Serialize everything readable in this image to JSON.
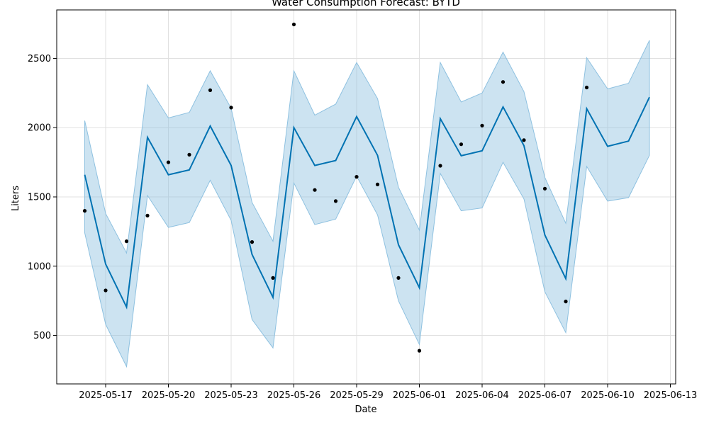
{
  "chart_data": {
    "type": "line",
    "title": "Water Consumption Forecast: BYTD",
    "xlabel": "Date",
    "ylabel": "Liters",
    "x_tick_labels": [
      "2025-05-17",
      "2025-05-20",
      "2025-05-23",
      "2025-05-26",
      "2025-05-29",
      "2025-06-01",
      "2025-06-04",
      "2025-06-07",
      "2025-06-10",
      "2025-06-13"
    ],
    "y_ticks": [
      500,
      1000,
      1500,
      2000,
      2500
    ],
    "x_range": [
      "2025-05-14",
      "2025-06-13"
    ],
    "ylim": [
      150,
      2850
    ],
    "grid": true,
    "colors": {
      "forecast_line": "#0072b2",
      "interval_fill": "#8ec1e0",
      "interval_edge": "#8ec1e0",
      "actual_points": "#000000",
      "grid": "#e0e0e0"
    },
    "dates": [
      "2025-05-16",
      "2025-05-17",
      "2025-05-18",
      "2025-05-19",
      "2025-05-20",
      "2025-05-21",
      "2025-05-22",
      "2025-05-23",
      "2025-05-24",
      "2025-05-25",
      "2025-05-26",
      "2025-05-27",
      "2025-05-28",
      "2025-05-29",
      "2025-05-30",
      "2025-05-31",
      "2025-06-01",
      "2025-06-02",
      "2025-06-03",
      "2025-06-04",
      "2025-06-05",
      "2025-06-06",
      "2025-06-07",
      "2025-06-08",
      "2025-06-09",
      "2025-06-10",
      "2025-06-11",
      "2025-06-12"
    ],
    "series": [
      {
        "values": [
          1660,
          1015,
          705,
          1930,
          1660,
          1695,
          2012,
          1727,
          1085,
          775,
          2000,
          1727,
          1763,
          2080,
          1800,
          1155,
          845,
          2065,
          1797,
          1833,
          2150,
          1870,
          1225,
          910,
          2137,
          1865,
          1903,
          2220
        ],
        "upper": [
          2050,
          1380,
          1095,
          2310,
          2070,
          2110,
          2410,
          2140,
          1460,
          1180,
          2410,
          2090,
          2170,
          2470,
          2210,
          1570,
          1260,
          2470,
          2185,
          2250,
          2545,
          2260,
          1640,
          1310,
          2505,
          2280,
          2320,
          2630
        ],
        "lower": [
          1240,
          580,
          275,
          1510,
          1280,
          1315,
          1620,
          1330,
          615,
          410,
          1600,
          1300,
          1340,
          1650,
          1370,
          750,
          435,
          1670,
          1400,
          1420,
          1750,
          1485,
          815,
          520,
          1720,
          1470,
          1495,
          1800
        ]
      }
    ],
    "actual_dates": [
      "2025-05-16",
      "2025-05-17",
      "2025-05-18",
      "2025-05-19",
      "2025-05-20",
      "2025-05-21",
      "2025-05-22",
      "2025-05-23",
      "2025-05-24",
      "2025-05-25",
      "2025-05-26",
      "2025-05-27",
      "2025-05-28",
      "2025-05-29",
      "2025-05-30",
      "2025-05-31",
      "2025-06-01",
      "2025-06-02",
      "2025-06-03",
      "2025-06-04",
      "2025-06-05",
      "2025-06-06",
      "2025-06-07",
      "2025-06-08",
      "2025-06-09"
    ],
    "actual_values": [
      1400,
      825,
      1180,
      1365,
      1750,
      1805,
      2270,
      2145,
      1175,
      915,
      2745,
      1550,
      1470,
      1645,
      1590,
      915,
      390,
      1725,
      1880,
      2015,
      2330,
      1910,
      1560,
      745,
      2290
    ]
  }
}
